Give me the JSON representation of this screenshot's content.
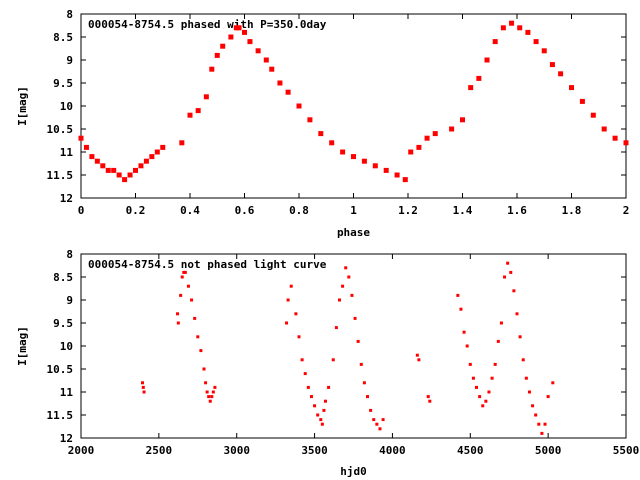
{
  "chart_data": [
    {
      "type": "scatter",
      "title": "000054-8754.5 phased with P=350.0day",
      "xlabel": "phase",
      "ylabel": "I[mag]",
      "xlim": [
        0,
        2
      ],
      "ylim": [
        12,
        8
      ],
      "y_inverted": true,
      "x_ticks": [
        "0",
        "0.2",
        "0.4",
        "0.6",
        "0.8",
        "1",
        "1.2",
        "1.4",
        "1.6",
        "1.8",
        "2"
      ],
      "y_ticks": [
        "8",
        "8.5",
        "9",
        "9.5",
        "10",
        "10.5",
        "11",
        "11.5",
        "12"
      ],
      "marker_color": "#ff0000",
      "series": [
        {
          "x": [
            0.0,
            0.02,
            0.04,
            0.06,
            0.08,
            0.1,
            0.12,
            0.14,
            0.16,
            0.18,
            0.2,
            0.22,
            0.24,
            0.26,
            0.28,
            0.3,
            0.37,
            0.4,
            0.43,
            0.46,
            0.48,
            0.5,
            0.52,
            0.55,
            0.57,
            0.58,
            0.6,
            0.62,
            0.65,
            0.68,
            0.7,
            0.73,
            0.76,
            0.8,
            0.84,
            0.88,
            0.92,
            0.96,
            1.0,
            1.04,
            1.08,
            1.12,
            1.16,
            1.19,
            1.21,
            1.24,
            1.27,
            1.3,
            1.36,
            1.4,
            1.43,
            1.46,
            1.49,
            1.52,
            1.55,
            1.58,
            1.61,
            1.64,
            1.67,
            1.7,
            1.73,
            1.76,
            1.8,
            1.84,
            1.88,
            1.92,
            1.96,
            2.0
          ],
          "y": [
            10.7,
            10.9,
            11.1,
            11.2,
            11.3,
            11.4,
            11.4,
            11.5,
            11.6,
            11.5,
            11.4,
            11.3,
            11.2,
            11.1,
            11.0,
            10.9,
            10.8,
            10.2,
            10.1,
            9.8,
            9.2,
            8.9,
            8.7,
            8.5,
            8.3,
            8.3,
            8.4,
            8.6,
            8.8,
            9.0,
            9.2,
            9.5,
            9.7,
            10.0,
            10.3,
            10.6,
            10.8,
            11.0,
            11.1,
            11.2,
            11.3,
            11.4,
            11.5,
            11.6,
            11.0,
            10.9,
            10.7,
            10.6,
            10.5,
            10.3,
            9.6,
            9.4,
            9.0,
            8.6,
            8.3,
            8.2,
            8.3,
            8.4,
            8.6,
            8.8,
            9.1,
            9.3,
            9.6,
            9.9,
            10.2,
            10.5,
            10.7,
            10.8
          ]
        }
      ]
    },
    {
      "type": "scatter",
      "title": "000054-8754.5 not phased light curve",
      "xlabel": "hjd0",
      "ylabel": "I[mag]",
      "xlim": [
        2000,
        5500
      ],
      "ylim": [
        12,
        8
      ],
      "y_inverted": true,
      "x_ticks": [
        "2000",
        "2500",
        "3000",
        "3500",
        "4000",
        "4500",
        "5000",
        "5500"
      ],
      "y_ticks": [
        "8",
        "8.5",
        "9",
        "9.5",
        "10",
        "10.5",
        "11",
        "11.5",
        "12"
      ],
      "marker_color": "#ff0000",
      "series": [
        {
          "x": [
            2395,
            2400,
            2405,
            2620,
            2625,
            2640,
            2650,
            2660,
            2670,
            2690,
            2710,
            2730,
            2750,
            2770,
            2790,
            2800,
            2810,
            2820,
            2830,
            2840,
            2850,
            2860,
            3320,
            3330,
            3350,
            3380,
            3400,
            3420,
            3440,
            3460,
            3480,
            3500,
            3520,
            3540,
            3550,
            3560,
            3570,
            3590,
            3620,
            3640,
            3660,
            3680,
            3700,
            3720,
            3740,
            3760,
            3780,
            3800,
            3820,
            3840,
            3860,
            3880,
            3900,
            3920,
            3940,
            4160,
            4170,
            4230,
            4240,
            4420,
            4440,
            4460,
            4480,
            4500,
            4520,
            4540,
            4560,
            4580,
            4600,
            4620,
            4640,
            4660,
            4680,
            4700,
            4720,
            4740,
            4760,
            4780,
            4800,
            4820,
            4840,
            4860,
            4880,
            4900,
            4920,
            4940,
            4960,
            4980,
            5000,
            5030
          ],
          "y": [
            10.8,
            10.9,
            11.0,
            9.3,
            9.5,
            8.9,
            8.5,
            8.4,
            8.4,
            8.7,
            9.0,
            9.4,
            9.8,
            10.1,
            10.5,
            10.8,
            11.0,
            11.1,
            11.2,
            11.1,
            11.0,
            10.9,
            9.5,
            9.0,
            8.7,
            9.3,
            9.8,
            10.3,
            10.6,
            10.9,
            11.1,
            11.3,
            11.5,
            11.6,
            11.7,
            11.4,
            11.2,
            10.9,
            10.3,
            9.6,
            9.0,
            8.7,
            8.3,
            8.5,
            8.9,
            9.4,
            9.9,
            10.4,
            10.8,
            11.1,
            11.4,
            11.6,
            11.7,
            11.8,
            11.6,
            10.2,
            10.3,
            11.1,
            11.2,
            8.9,
            9.2,
            9.7,
            10.0,
            10.4,
            10.7,
            10.9,
            11.1,
            11.3,
            11.2,
            11.0,
            10.7,
            10.4,
            9.9,
            9.5,
            8.5,
            8.2,
            8.4,
            8.8,
            9.3,
            9.8,
            10.3,
            10.7,
            11.0,
            11.3,
            11.5,
            11.7,
            11.9,
            11.7,
            11.1,
            10.8
          ]
        }
      ]
    }
  ]
}
